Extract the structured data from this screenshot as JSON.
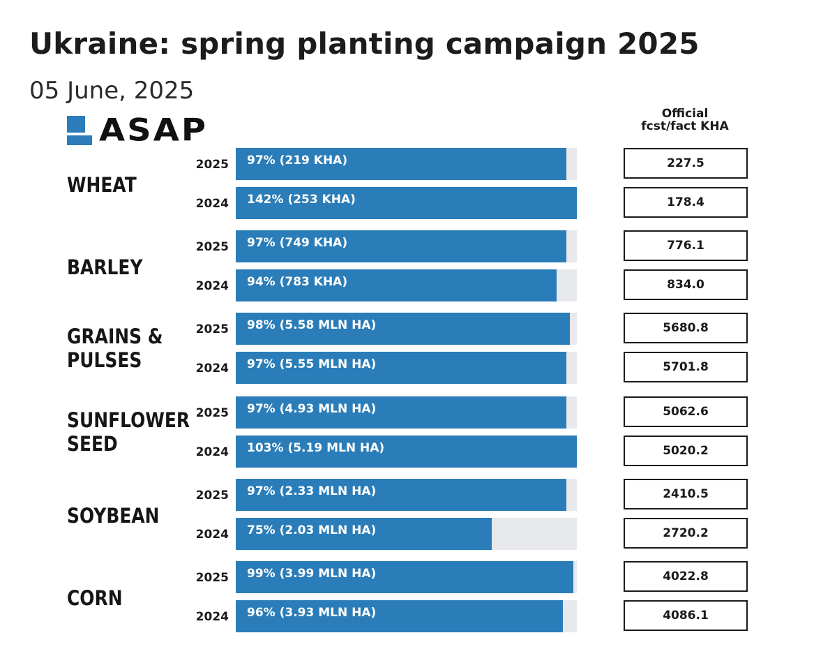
{
  "header": {
    "title": "Ukraine: spring planting campaign 2025",
    "date": "05 June, 2025",
    "logo_text": "ASAP"
  },
  "column_header": [
    "Official",
    "fcst/fact KHA"
  ],
  "colors": {
    "bar": "#2a7db8",
    "track": "#e8e9ed",
    "text": "#1a1a1a"
  },
  "chart_data": {
    "type": "bar",
    "orientation": "horizontal",
    "title": "Ukraine: spring planting campaign 2025",
    "subtitle": "05 June, 2025",
    "xlim": [
      0,
      100
    ],
    "x_unit": "% of official forecast/fact planted (capped at 100% bar length)",
    "groups": [
      {
        "crop": [
          "WHEAT"
        ],
        "rows": [
          {
            "year": "2025",
            "pct": 97,
            "label": "97% (219 KHA)",
            "official": "227.5"
          },
          {
            "year": "2024",
            "pct": 142,
            "label": "142% (253 KHA)",
            "official": "178.4"
          }
        ]
      },
      {
        "crop": [
          "BARLEY"
        ],
        "rows": [
          {
            "year": "2025",
            "pct": 97,
            "label": "97% (749 KHA)",
            "official": "776.1"
          },
          {
            "year": "2024",
            "pct": 94,
            "label": "94% (783 KHA)",
            "official": "834.0"
          }
        ]
      },
      {
        "crop": [
          "GRAINS &",
          "PULSES"
        ],
        "rows": [
          {
            "year": "2025",
            "pct": 98,
            "label": "98% (5.58 MLN HA)",
            "official": "5680.8"
          },
          {
            "year": "2024",
            "pct": 97,
            "label": "97% (5.55 MLN HA)",
            "official": "5701.8"
          }
        ]
      },
      {
        "crop": [
          "SUNFLOWER",
          "SEED"
        ],
        "rows": [
          {
            "year": "2025",
            "pct": 97,
            "label": "97% (4.93 MLN HA)",
            "official": "5062.6"
          },
          {
            "year": "2024",
            "pct": 103,
            "label": "103% (5.19 MLN HA)",
            "official": "5020.2"
          }
        ]
      },
      {
        "crop": [
          "SOYBEAN"
        ],
        "rows": [
          {
            "year": "2025",
            "pct": 97,
            "label": "97% (2.33 MLN HA)",
            "official": "2410.5"
          },
          {
            "year": "2024",
            "pct": 75,
            "label": "75% (2.03 MLN HA)",
            "official": "2720.2"
          }
        ]
      },
      {
        "crop": [
          "CORN"
        ],
        "rows": [
          {
            "year": "2025",
            "pct": 99,
            "label": "99% (3.99 MLN HA)",
            "official": "4022.8"
          },
          {
            "year": "2024",
            "pct": 96,
            "label": "96% (3.93 MLN HA)",
            "official": "4086.1"
          }
        ]
      }
    ]
  }
}
